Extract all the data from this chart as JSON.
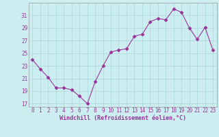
{
  "x": [
    0,
    1,
    2,
    3,
    4,
    5,
    6,
    7,
    8,
    9,
    10,
    11,
    12,
    13,
    14,
    15,
    16,
    17,
    18,
    19,
    20,
    21,
    22,
    23
  ],
  "y": [
    24.0,
    22.5,
    21.2,
    19.5,
    19.5,
    19.2,
    18.2,
    17.0,
    20.5,
    23.0,
    25.2,
    25.5,
    25.7,
    27.7,
    28.0,
    30.0,
    30.5,
    30.3,
    32.0,
    31.5,
    29.0,
    27.2,
    29.1,
    25.5
  ],
  "line_color": "#993399",
  "marker_color": "#993399",
  "bg_color": "#cdeef0",
  "grid_color": "#aad8dc",
  "text_color": "#993399",
  "xlabel": "Windchill (Refroidissement éolien,°C)",
  "ylim_min": 16.5,
  "ylim_max": 33.0,
  "yticks": [
    17,
    19,
    21,
    23,
    25,
    27,
    29,
    31
  ],
  "xlim_min": -0.5,
  "xlim_max": 23.5,
  "tick_fontsize": 5.5,
  "xlabel_fontsize": 6.0
}
